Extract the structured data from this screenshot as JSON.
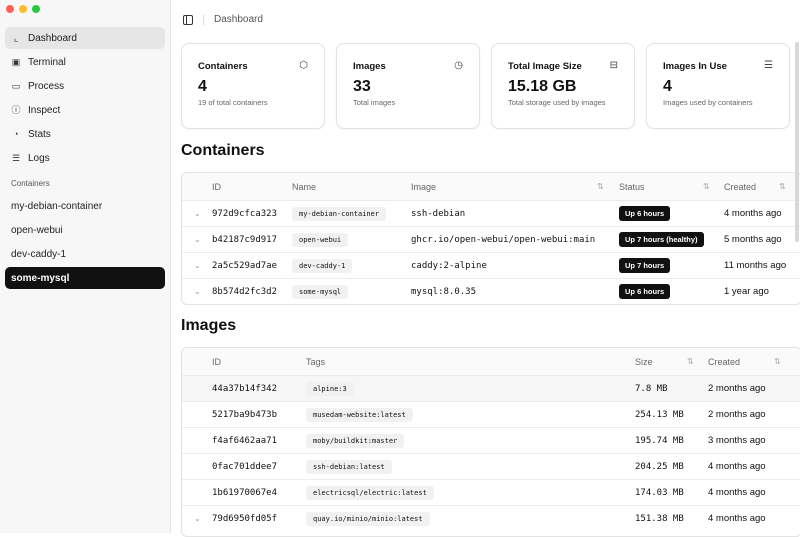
{
  "window": {
    "controls": [
      "#ff5f57",
      "#febc2e",
      "#28c840"
    ]
  },
  "sidebar": {
    "nav": [
      {
        "label": "Dashboard",
        "icon": "chart-line-icon"
      },
      {
        "label": "Terminal",
        "icon": "terminal-icon"
      },
      {
        "label": "Process",
        "icon": "window-icon"
      },
      {
        "label": "Inspect",
        "icon": "info-icon"
      },
      {
        "label": "Stats",
        "icon": "pie-chart-icon"
      },
      {
        "label": "Logs",
        "icon": "list-icon"
      }
    ],
    "section_label": "Containers",
    "containers": [
      "my-debian-container",
      "open-webui",
      "dev-caddy-1",
      "some-mysql"
    ],
    "selected": "some-mysql"
  },
  "header": {
    "breadcrumb": "Dashboard"
  },
  "cards": [
    {
      "title": "Containers",
      "value": "4",
      "sub": "19 of total containers",
      "icon": "box-icon"
    },
    {
      "title": "Images",
      "value": "33",
      "sub": "Total images",
      "icon": "disc-icon"
    },
    {
      "title": "Total Image Size",
      "value": "15.18 GB",
      "sub": "Total storage used by images",
      "icon": "hard-drive-icon"
    },
    {
      "title": "Images In Use",
      "value": "4",
      "sub": "Images used by containers",
      "icon": "list-check-icon"
    }
  ],
  "containers": {
    "title": "Containers",
    "columns": [
      "ID",
      "Name",
      "Image",
      "Status",
      "Created"
    ],
    "rows": [
      {
        "id": "972d9cfca323",
        "name": "my-debian-container",
        "image": "ssh-debian",
        "status": "Up 6 hours",
        "created": "4 months ago"
      },
      {
        "id": "b42187c9d917",
        "name": "open-webui",
        "image": "ghcr.io/open-webui/open-webui:main",
        "status": "Up 7 hours (healthy)",
        "created": "5 months ago"
      },
      {
        "id": "2a5c529ad7ae",
        "name": "dev-caddy-1",
        "image": "caddy:2-alpine",
        "status": "Up 7 hours",
        "created": "11 months ago"
      },
      {
        "id": "8b574d2fc3d2",
        "name": "some-mysql",
        "image": "mysql:8.0.35",
        "status": "Up 6 hours",
        "created": "1 year ago"
      }
    ]
  },
  "images": {
    "title": "Images",
    "columns": [
      "ID",
      "Tags",
      "Size",
      "Created"
    ],
    "rows": [
      {
        "id": "44a37b14f342",
        "tag": "alpine:3",
        "size": "7.8 MB",
        "created": "2 months ago"
      },
      {
        "id": "5217ba9b473b",
        "tag": "musedam-website:latest",
        "size": "254.13 MB",
        "created": "2 months ago"
      },
      {
        "id": "f4af6462aa71",
        "tag": "moby/buildkit:master",
        "size": "195.74 MB",
        "created": "3 months ago"
      },
      {
        "id": "0fac701ddee7",
        "tag": "ssh-debian:latest",
        "size": "204.25 MB",
        "created": "4 months ago"
      },
      {
        "id": "1b61970067e4",
        "tag": "electricsql/electric:latest",
        "size": "174.03 MB",
        "created": "4 months ago"
      },
      {
        "id": "79d6950fd05f",
        "tag": "quay.io/minio/minio:latest",
        "size": "151.38 MB",
        "created": "4 months ago"
      }
    ]
  }
}
